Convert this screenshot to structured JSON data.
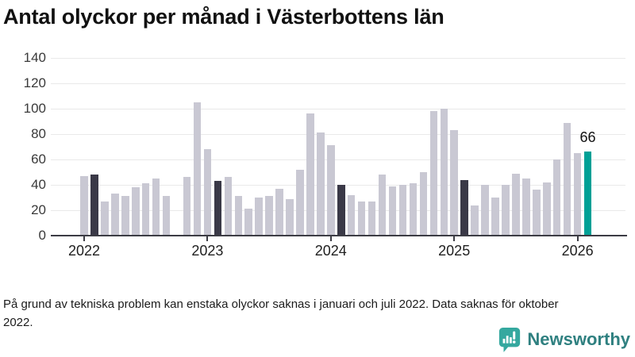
{
  "title": "Antal olyckor per månad i Västerbottens län",
  "footnote": "På grund av tekniska problem kan enstaka olyckor saknas i januari och juli 2022. Data saknas för oktober 2022.",
  "logo": {
    "text": "Newsworthy",
    "icon": "newsworthy-badge-icon"
  },
  "chart_data": {
    "type": "bar",
    "title": "Antal olyckor per månad i Västerbottens län",
    "xlabel": "",
    "ylabel": "",
    "ylim": [
      0,
      140
    ],
    "yticks": [
      0,
      20,
      40,
      60,
      80,
      100,
      120,
      140
    ],
    "grid": true,
    "x_tick_labels": [
      "2022",
      "2023",
      "2024",
      "2025",
      "2026"
    ],
    "months_per_year": 12,
    "series": [
      {
        "year": "2022",
        "values": [
          47,
          48,
          27,
          33,
          31,
          38,
          41,
          45,
          31,
          null,
          46,
          105
        ]
      },
      {
        "year": "2023",
        "values": [
          68,
          43,
          46,
          31,
          21,
          30,
          31,
          37,
          29,
          52,
          96,
          81
        ]
      },
      {
        "year": "2024",
        "values": [
          71,
          40,
          32,
          27,
          27,
          48,
          39,
          40,
          41,
          50,
          98,
          100
        ]
      },
      {
        "year": "2025",
        "values": [
          83,
          44,
          24,
          40,
          30,
          40,
          49,
          45,
          36,
          42,
          60,
          89
        ]
      },
      {
        "year": "2026",
        "values": [
          65,
          66
        ]
      }
    ],
    "highlight_month_index": 1,
    "latest_value_label": "66",
    "colors": {
      "bar_default": "#c9c8d3",
      "bar_highlight": "#3a3947",
      "bar_latest": "#00a096",
      "gridline": "#e9e9e9",
      "axis": "#3c3c44"
    }
  }
}
